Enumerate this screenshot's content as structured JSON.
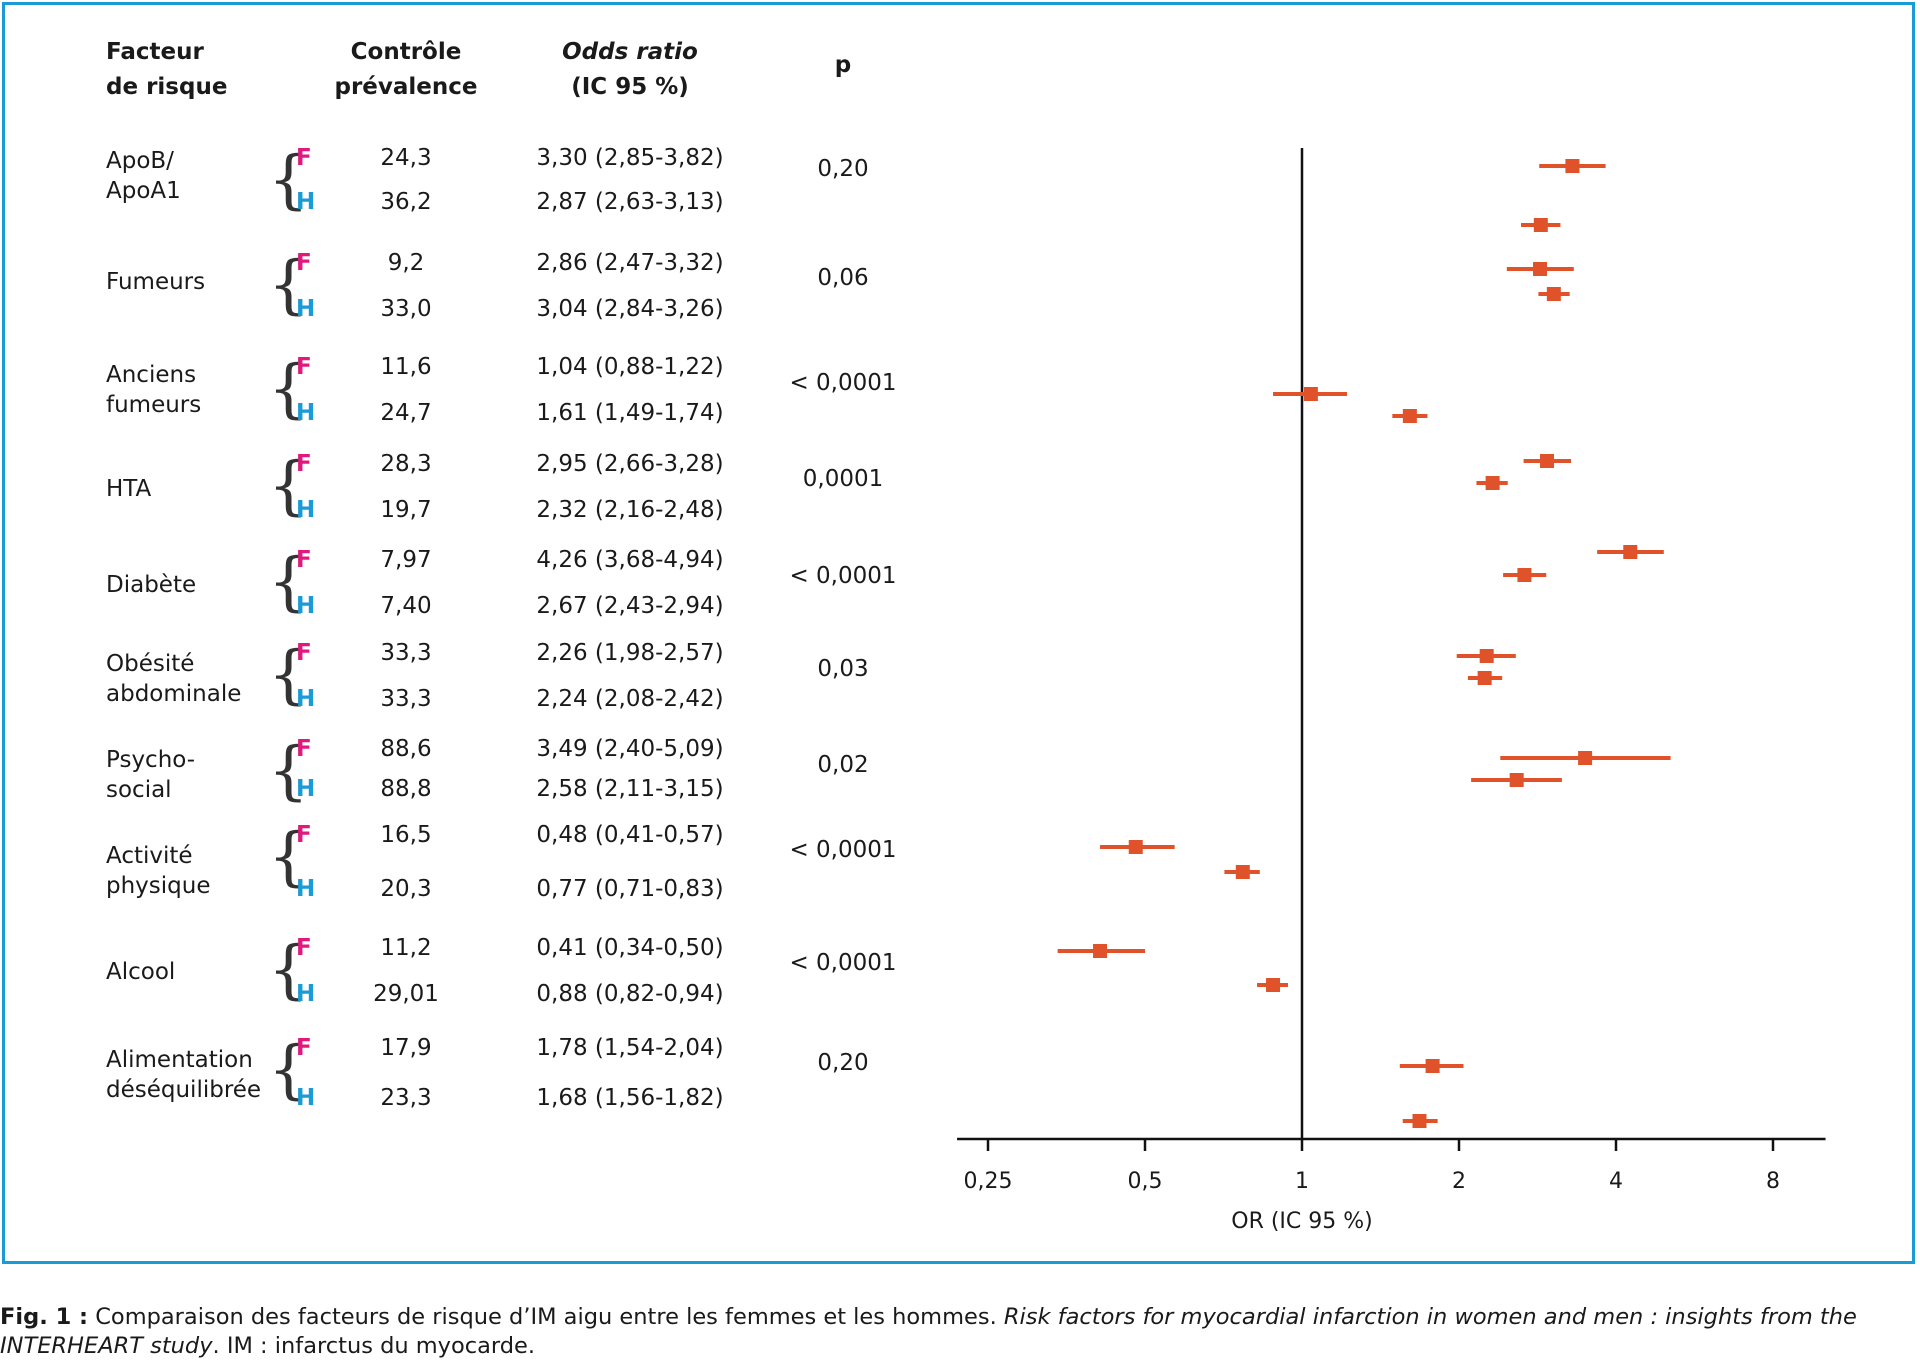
{
  "headers": {
    "factor_line1": "Facteur",
    "factor_line2": "de risque",
    "prev_line1": "Contrôle",
    "prev_line2": "prévalence",
    "or_line1": "Odds ratio",
    "or_line2": "(IC 95 %)",
    "p": "p"
  },
  "sex_labels": {
    "F": "F",
    "H": "H"
  },
  "colors": {
    "F": "#e0197d",
    "H": "#1a9ad6",
    "marker": "#e0522a",
    "frame": "#1a9ad6"
  },
  "rows": [
    {
      "factor": [
        "ApoB/",
        "ApoA1"
      ],
      "p": "0,20",
      "F": {
        "prev": "24,3",
        "or_text": "3,30 (2,85-3,82)"
      },
      "H": {
        "prev": "36,2",
        "or_text": "2,87 (2,63-3,13)"
      }
    },
    {
      "factor": [
        "Fumeurs"
      ],
      "p": "0,06",
      "F": {
        "prev": "9,2",
        "or_text": "2,86 (2,47-3,32)"
      },
      "H": {
        "prev": "33,0",
        "or_text": "3,04 (2,84-3,26)"
      }
    },
    {
      "factor": [
        "Anciens",
        "fumeurs"
      ],
      "p": "< 0,0001",
      "F": {
        "prev": "11,6",
        "or_text": "1,04 (0,88-1,22)"
      },
      "H": {
        "prev": "24,7",
        "or_text": "1,61 (1,49-1,74)"
      }
    },
    {
      "factor": [
        "HTA"
      ],
      "p": "0,0001",
      "F": {
        "prev": "28,3",
        "or_text": "2,95 (2,66-3,28)"
      },
      "H": {
        "prev": "19,7",
        "or_text": "2,32 (2,16-2,48)"
      }
    },
    {
      "factor": [
        "Diabète"
      ],
      "p": "< 0,0001",
      "F": {
        "prev": "7,97",
        "or_text": "4,26 (3,68-4,94)"
      },
      "H": {
        "prev": "7,40",
        "or_text": "2,67 (2,43-2,94)"
      }
    },
    {
      "factor": [
        "Obésité",
        "abdominale"
      ],
      "p": "0,03",
      "F": {
        "prev": "33,3",
        "or_text": "2,26 (1,98-2,57)"
      },
      "H": {
        "prev": "33,3",
        "or_text": "2,24 (2,08-2,42)"
      }
    },
    {
      "factor": [
        "Psycho-",
        "social"
      ],
      "p": "0,02",
      "F": {
        "prev": "88,6",
        "or_text": "3,49 (2,40-5,09)"
      },
      "H": {
        "prev": "88,8",
        "or_text": "2,58 (2,11-3,15)"
      }
    },
    {
      "factor": [
        "Activité",
        "physique"
      ],
      "p": "< 0,0001",
      "F": {
        "prev": "16,5",
        "or_text": "0,48 (0,41-0,57)"
      },
      "H": {
        "prev": "20,3",
        "or_text": "0,77 (0,71-0,83)"
      }
    },
    {
      "factor": [
        "Alcool"
      ],
      "p": "< 0,0001",
      "F": {
        "prev": "11,2",
        "or_text": "0,41 (0,34-0,50)"
      },
      "H": {
        "prev": "29,01",
        "or_text": "0,88 (0,82-0,94)"
      }
    },
    {
      "factor": [
        "Alimentation",
        "déséquilibrée"
      ],
      "p": "0,20",
      "F": {
        "prev": "17,9",
        "or_text": "1,78 (1,54-2,04)"
      },
      "H": {
        "prev": "23,3",
        "or_text": "1,68 (1,56-1,82)"
      }
    }
  ],
  "caption": {
    "label": "Fig. 1 :",
    "text": " Comparaison des facteurs de risque d’IM aigu entre les femmes et les hommes. ",
    "source_italic": "Risk factors for myocardial infarction in women and men : insights from the INTERHEART study",
    "tail": ". IM : infarctus du myocarde."
  },
  "chart_data": {
    "type": "scatter",
    "xscale": "log2",
    "xlabel": "OR (IC 95 %)",
    "xlim": [
      0.22,
      10
    ],
    "xticks": [
      0.25,
      0.5,
      1,
      2,
      4,
      8
    ],
    "xtick_labels": [
      "0,25",
      "0,5",
      "1",
      "2",
      "4",
      "8"
    ],
    "reference_line": 1,
    "points": [
      {
        "factor": "ApoB/ApoA1",
        "sex": "F",
        "or": 3.3,
        "lo": 2.85,
        "hi": 3.82
      },
      {
        "factor": "ApoB/ApoA1",
        "sex": "H",
        "or": 2.87,
        "lo": 2.63,
        "hi": 3.13
      },
      {
        "factor": "Fumeurs",
        "sex": "F",
        "or": 2.86,
        "lo": 2.47,
        "hi": 3.32
      },
      {
        "factor": "Fumeurs",
        "sex": "H",
        "or": 3.04,
        "lo": 2.84,
        "hi": 3.26
      },
      {
        "factor": "Anciens fumeurs",
        "sex": "F",
        "or": 1.04,
        "lo": 0.88,
        "hi": 1.22
      },
      {
        "factor": "Anciens fumeurs",
        "sex": "H",
        "or": 1.61,
        "lo": 1.49,
        "hi": 1.74
      },
      {
        "factor": "HTA",
        "sex": "F",
        "or": 2.95,
        "lo": 2.66,
        "hi": 3.28
      },
      {
        "factor": "HTA",
        "sex": "H",
        "or": 2.32,
        "lo": 2.16,
        "hi": 2.48
      },
      {
        "factor": "Diabète",
        "sex": "F",
        "or": 4.26,
        "lo": 3.68,
        "hi": 4.94
      },
      {
        "factor": "Diabète",
        "sex": "H",
        "or": 2.67,
        "lo": 2.43,
        "hi": 2.94
      },
      {
        "factor": "Obésité abdominale",
        "sex": "F",
        "or": 2.26,
        "lo": 1.98,
        "hi": 2.57
      },
      {
        "factor": "Obésité abdominale",
        "sex": "H",
        "or": 2.24,
        "lo": 2.08,
        "hi": 2.42
      },
      {
        "factor": "Psycho-social",
        "sex": "F",
        "or": 3.49,
        "lo": 2.4,
        "hi": 5.09
      },
      {
        "factor": "Psycho-social",
        "sex": "H",
        "or": 2.58,
        "lo": 2.11,
        "hi": 3.15
      },
      {
        "factor": "Activité physique",
        "sex": "F",
        "or": 0.48,
        "lo": 0.41,
        "hi": 0.57
      },
      {
        "factor": "Activité physique",
        "sex": "H",
        "or": 0.77,
        "lo": 0.71,
        "hi": 0.83
      },
      {
        "factor": "Alcool",
        "sex": "F",
        "or": 0.41,
        "lo": 0.34,
        "hi": 0.5
      },
      {
        "factor": "Alcool",
        "sex": "H",
        "or": 0.88,
        "lo": 0.82,
        "hi": 0.94
      },
      {
        "factor": "Alimentation déséquilibrée",
        "sex": "F",
        "or": 1.78,
        "lo": 1.54,
        "hi": 2.04
      },
      {
        "factor": "Alimentation déséquilibrée",
        "sex": "H",
        "or": 1.68,
        "lo": 1.56,
        "hi": 1.82
      }
    ]
  }
}
